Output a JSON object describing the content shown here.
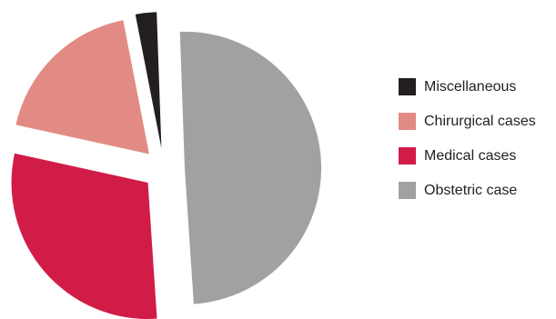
{
  "chart_data": {
    "type": "pie",
    "title": "",
    "exploded": true,
    "legend_position": "right",
    "slices": [
      {
        "label": "Obstetric case",
        "value": 49.5,
        "color": "#a1a1a4"
      },
      {
        "label": "Medical cases",
        "value": 29.5,
        "color": "#d11c48"
      },
      {
        "label": "Chirurgical cases",
        "value": 18.5,
        "color": "#e28b84"
      },
      {
        "label": "Miscellaneous",
        "value": 2.5,
        "color": "#231f20"
      }
    ],
    "legend_order": [
      "Miscellaneous",
      "Chirurgical cases",
      "Medical cases",
      "Obstetric case"
    ]
  }
}
